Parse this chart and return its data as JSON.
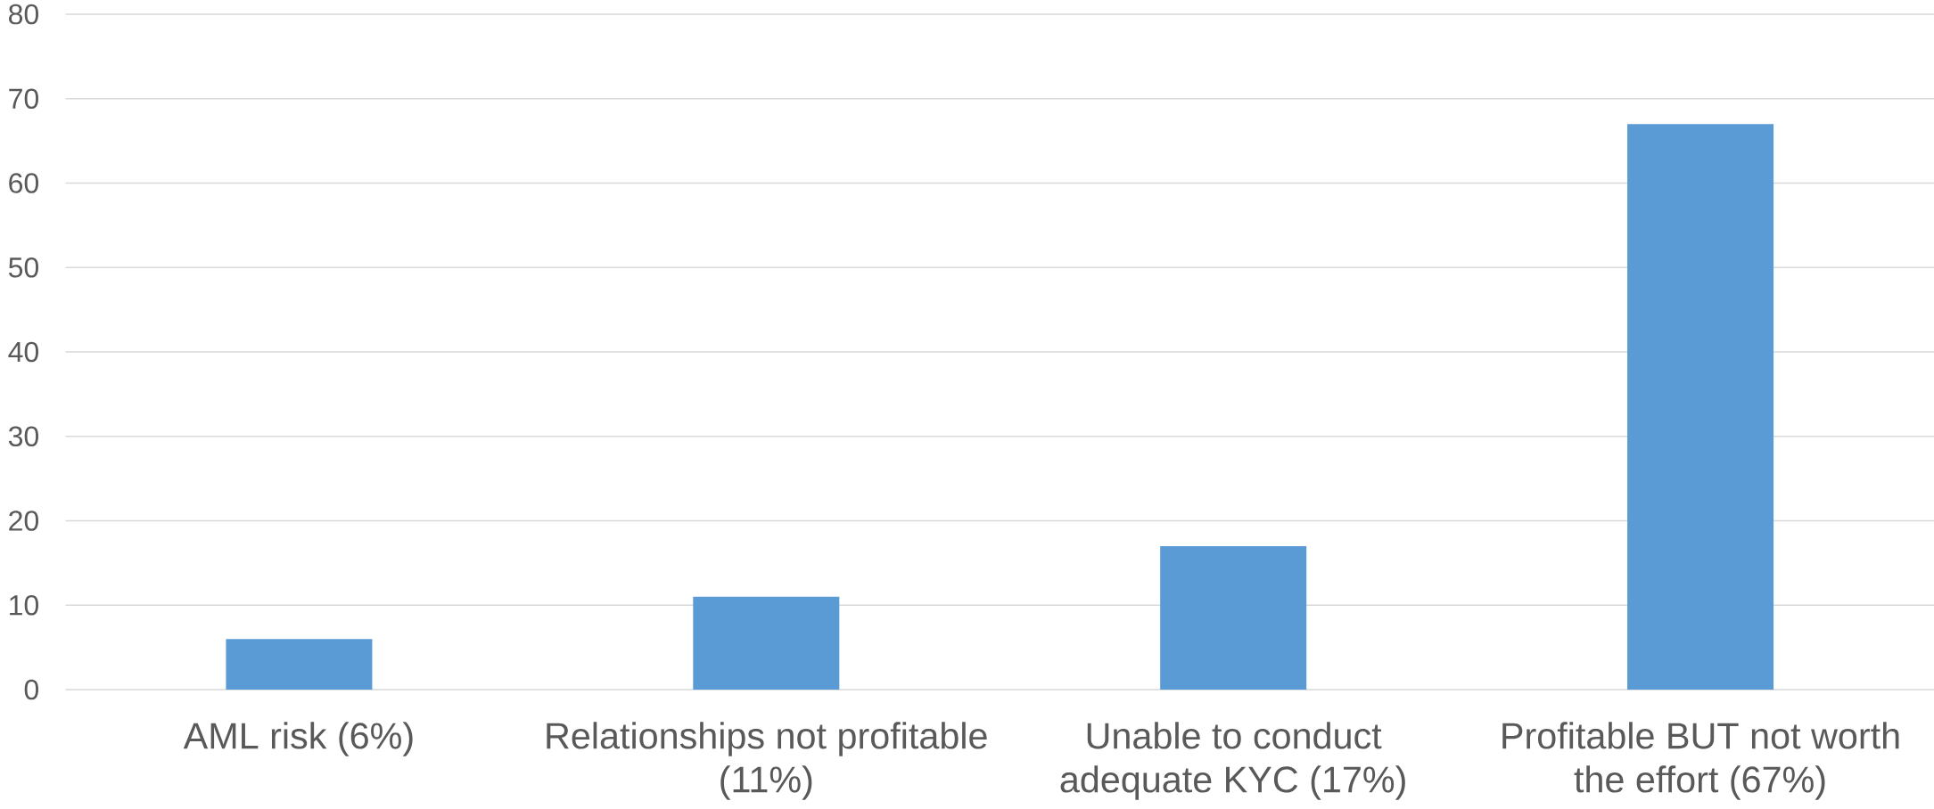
{
  "chart_data": {
    "type": "bar",
    "categories": [
      "AML risk (6%)",
      "Relationships not profitable (11%)",
      "Unable to conduct adequate KYC (17%)",
      "Profitable BUT not worth the effort (67%)"
    ],
    "values": [
      6,
      11,
      17,
      67
    ],
    "color": "#5b9bd5",
    "ylim": [
      0,
      80
    ],
    "yticks": [
      0,
      10,
      20,
      30,
      40,
      50,
      60,
      70,
      80
    ],
    "grid": "y"
  }
}
